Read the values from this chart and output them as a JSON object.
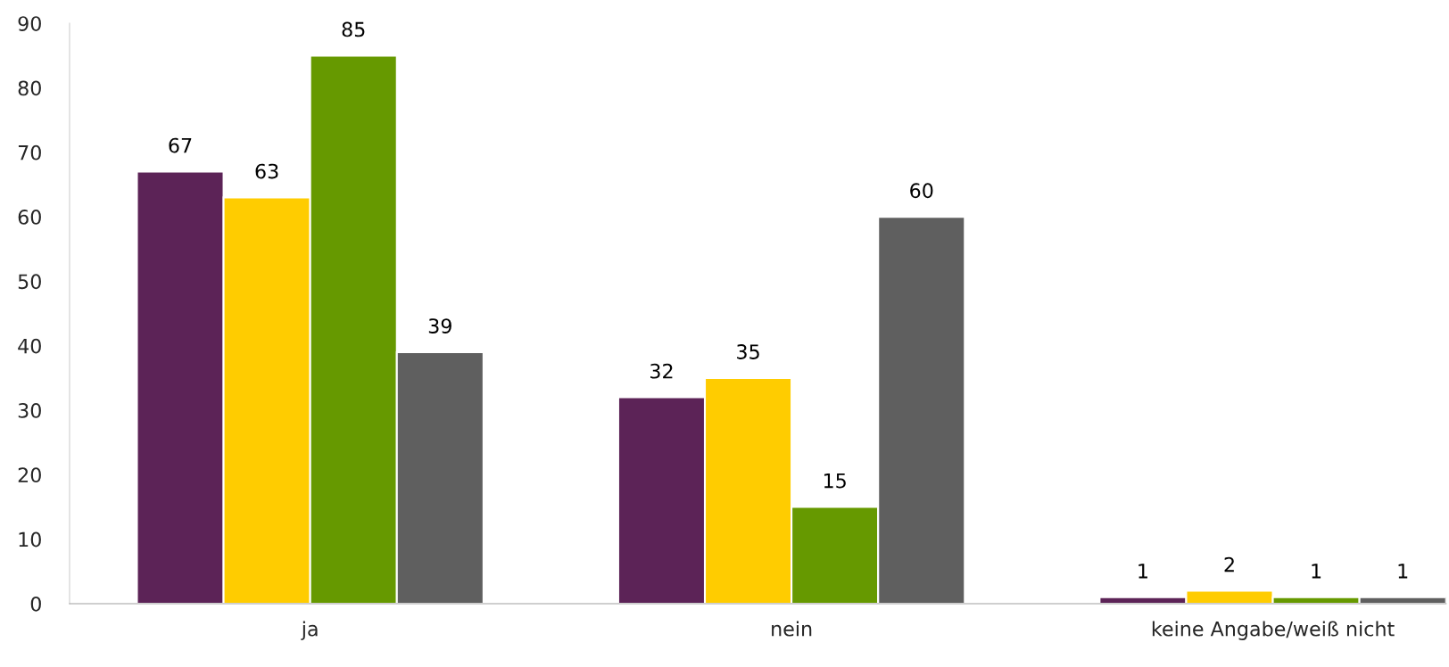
{
  "chart_data": {
    "type": "bar",
    "categories": [
      "ja",
      "nein",
      "keine Angabe/weiß nicht"
    ],
    "series": [
      {
        "color": "#5c2357",
        "values": [
          67,
          32,
          1
        ]
      },
      {
        "color": "#ffcc00",
        "values": [
          63,
          35,
          2
        ]
      },
      {
        "color": "#669900",
        "values": [
          85,
          15,
          1
        ]
      },
      {
        "color": "#5f5f5f",
        "values": [
          39,
          60,
          1
        ]
      }
    ],
    "ylim": [
      0,
      90
    ],
    "yticks": [
      0,
      10,
      20,
      30,
      40,
      50,
      60,
      70,
      80,
      90
    ],
    "data_labels": true,
    "grid": false
  }
}
